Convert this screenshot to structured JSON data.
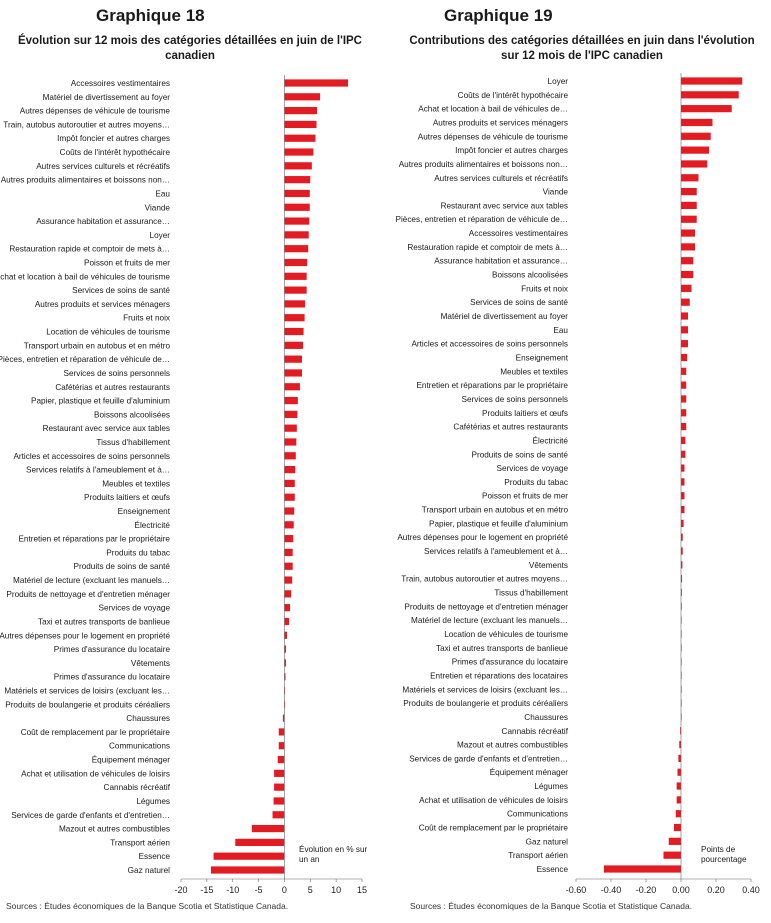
{
  "source_text": "Sources : Études économiques de la Banque Scotia et Statistique Canada.",
  "colors": {
    "bar": "#e31b23",
    "text": "#1a1a1a",
    "axis": "#666666"
  },
  "chart_data": [
    {
      "type": "bar",
      "orientation": "horizontal",
      "label": "Graphique 18",
      "title": "Évolution sur 12 mois des catégories détaillées en juin de l'IPC canadien",
      "annotation": "Évolution en % sur un an",
      "xlim": [
        -20,
        15
      ],
      "xticks": [
        -20,
        -15,
        -10,
        -5,
        0,
        5,
        10,
        15
      ],
      "xtick_labels": [
        "-20",
        "-15",
        "-10",
        "-5",
        "0",
        "5",
        "10",
        "15"
      ],
      "categories": [
        "Accessoires vestimentaires",
        "Matériel de divertissement au foyer",
        "Autres dépenses de véhicule de tourisme",
        "Train, autobus autoroutier et autres moyens…",
        "Impôt foncier et autres charges",
        "Coûts de l'intérêt hypothécaire",
        "Autres services culturels et récréatifs",
        "Autres produits alimentaires et boissons non…",
        "Eau",
        "Viande",
        "Assurance habitation et assurance…",
        "Loyer",
        "Restauration rapide et comptoir de mets à…",
        "Poisson et fruits de mer",
        "Achat et location à bail de véhicules de tourisme",
        "Services de soins de santé",
        "Autres produits et services ménagers",
        "Fruits et noix",
        "Location de véhicules de tourisme",
        "Transport urbain en autobus et en métro",
        "Pièces, entretien et réparation de véhicule de…",
        "Services de soins personnels",
        "Cafétérias et autres restaurants",
        "Papier, plastique et feuille d'aluminium",
        "Boissons alcoolisées",
        "Restaurant avec service aux tables",
        "Tissus d'habillement",
        "Articles et accessoires de soins personnels",
        "Services relatifs à l'ameublement et à…",
        "Meubles et textiles",
        "Produits laitiers et œufs",
        "Enseignement",
        "Électricité",
        "Entretien et réparations par le propriétaire",
        "Produits du tabac",
        "Produits de soins de santé",
        "Matériel de lecture (excluant les manuels…",
        "Produits de nettoyage et d'entretien ménager",
        "Services de voyage",
        "Taxi et autres transports de banlieue",
        "Autres dépenses pour le logement en propriété",
        "Primes d'assurance du locataire",
        "Vêtements",
        "Primes d'assurance du locataire",
        "Matériels et services de loisirs (excluant les…",
        "Produits de boulangerie et produits céréaliers",
        "Chaussures",
        "Coût de remplacement par le propriétaire",
        "Communications",
        "Équipement ménager",
        "Achat et utilisation de véhicules de loisirs",
        "Cannabis récréatif",
        "Légumes",
        "Services de garde d'enfants et d'entretien…",
        "Mazout et autres combustibles",
        "Transport aérien",
        "Essence",
        "Gaz naturel"
      ],
      "values": [
        12.3,
        6.9,
        6.3,
        6.2,
        6.0,
        5.6,
        5.3,
        5.0,
        4.9,
        4.9,
        4.8,
        4.7,
        4.6,
        4.4,
        4.3,
        4.3,
        4.0,
        3.9,
        3.7,
        3.6,
        3.4,
        3.4,
        3.0,
        2.6,
        2.5,
        2.4,
        2.3,
        2.2,
        2.1,
        2.0,
        2.0,
        1.9,
        1.8,
        1.7,
        1.6,
        1.6,
        1.5,
        1.3,
        1.1,
        0.9,
        0.5,
        0.3,
        0.3,
        0.2,
        0.1,
        0.1,
        -0.3,
        -1.1,
        -1.1,
        -1.3,
        -2.0,
        -2.0,
        -2.1,
        -2.3,
        -6.3,
        -9.5,
        -13.7,
        -14.2
      ]
    },
    {
      "type": "bar",
      "orientation": "horizontal",
      "label": "Graphique 19",
      "title": "Contributions des catégories détaillées en juin dans l'évolution sur 12 mois de l'IPC canadien",
      "annotation": "Points de pourcentage",
      "xlim": [
        -0.6,
        0.4
      ],
      "xticks": [
        -0.6,
        -0.4,
        -0.2,
        0,
        0.2,
        0.4
      ],
      "xtick_labels": [
        "-0.60",
        "-0.40",
        "-0.20",
        "0.00",
        "0.20",
        "0.40"
      ],
      "categories": [
        "Loyer",
        "Coûts de l'intérêt hypothécaire",
        "Achat et location à bail de véhicules de…",
        "Autres produits et services ménagers",
        "Autres dépenses de véhicule de tourisme",
        "Impôt foncier et autres charges",
        "Autres produits alimentaires et boissons non…",
        "Autres services culturels et récréatifs",
        "Viande",
        "Restaurant avec service aux tables",
        "Pièces, entretien et réparation de véhicule de…",
        "Accessoires vestimentaires",
        "Restauration rapide et comptoir de mets à…",
        "Assurance habitation et assurance…",
        "Boissons alcoolisées",
        "Fruits et noix",
        "Services de soins de santé",
        "Matériel de divertissement au foyer",
        "Eau",
        "Articles et accessoires de soins personnels",
        "Enseignement",
        "Meubles et textiles",
        "Entretien et réparations par le propriétaire",
        "Services de soins personnels",
        "Produits laitiers et œufs",
        "Cafétérias et autres restaurants",
        "Électricité",
        "Produits de soins de santé",
        "Services de voyage",
        "Produits du tabac",
        "Poisson et fruits de mer",
        "Transport urbain en autobus et en métro",
        "Papier, plastique et feuille d'aluminium",
        "Autres dépenses pour le logement en propriété",
        "Services relatifs à l'ameublement et à…",
        "Vêtements",
        "Train, autobus autoroutier et autres moyens…",
        "Tissus d'habillement",
        "Produits de nettoyage et d'entretien ménager",
        "Matériel de lecture (excluant les manuels…",
        "Location de véhicules de tourisme",
        "Taxi et autres transports de banlieue",
        "Primes d'assurance du locataire",
        "Entretien et réparations des locataires",
        "Matériels et services de loisirs (excluant les…",
        "Produits de boulangerie et produits céréaliers",
        "Chaussures",
        "Cannabis récréatif",
        "Mazout et autres combustibles",
        "Services de garde d'enfants et d'entretien…",
        "Équipement ménager",
        "Légumes",
        "Achat et utilisation de véhicules de loisirs",
        "Communications",
        "Coût de remplacement par le propriétaire",
        "Gaz naturel",
        "Transport aérien",
        "Essence"
      ],
      "values": [
        0.35,
        0.33,
        0.29,
        0.18,
        0.17,
        0.16,
        0.15,
        0.1,
        0.09,
        0.09,
        0.09,
        0.08,
        0.08,
        0.07,
        0.07,
        0.06,
        0.05,
        0.04,
        0.04,
        0.04,
        0.035,
        0.03,
        0.03,
        0.03,
        0.03,
        0.03,
        0.025,
        0.025,
        0.02,
        0.02,
        0.02,
        0.02,
        0.015,
        0.01,
        0.01,
        0.008,
        0.006,
        0.005,
        0.004,
        0.003,
        0.002,
        0.001,
        0.001,
        0.001,
        0.001,
        0.0,
        0.0,
        -0.005,
        -0.01,
        -0.015,
        -0.02,
        -0.025,
        -0.025,
        -0.03,
        -0.04,
        -0.07,
        -0.1,
        -0.44
      ]
    }
  ]
}
